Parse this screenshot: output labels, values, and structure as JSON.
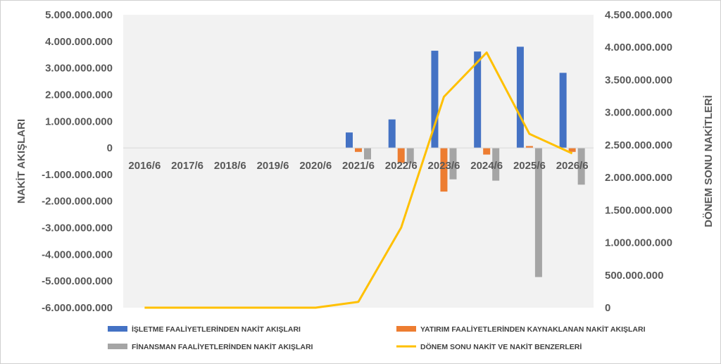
{
  "chart_data": {
    "type": "bar",
    "categories": [
      "2016/6",
      "2017/6",
      "2018/6",
      "2019/6",
      "2020/6",
      "2021/6",
      "2022/6",
      "2023/6",
      "2024/6",
      "2025/6",
      "2026/6"
    ],
    "series": [
      {
        "name": "İŞLETME FAALİYETLERİNDEN NAKİT AKIŞLARI",
        "axis": "left",
        "chart_type": "bar",
        "color": "#4472c4",
        "values": [
          0,
          0,
          0,
          0,
          0,
          580000000,
          1070000000,
          3650000000,
          3620000000,
          3800000000,
          2820000000
        ]
      },
      {
        "name": "YATIRIM FAALİYETLERİNDEN KAYNAKLANAN NAKİT AKIŞLARI",
        "axis": "left",
        "chart_type": "bar",
        "color": "#ed7d31",
        "values": [
          0,
          0,
          0,
          0,
          0,
          -150000000,
          -560000000,
          -1640000000,
          -250000000,
          70000000,
          -150000000
        ]
      },
      {
        "name": "FİNANSMAN FAALİYETLERİNDEN NAKİT AKIŞLARI",
        "axis": "left",
        "chart_type": "bar",
        "color": "#a5a5a5",
        "values": [
          0,
          0,
          0,
          0,
          0,
          -430000000,
          -580000000,
          -1180000000,
          -1230000000,
          -4850000000,
          -1380000000
        ]
      },
      {
        "name": "DÖNEM SONU NAKİT VE NAKİT BENZERLERİ",
        "axis": "right",
        "chart_type": "line",
        "color": "#ffc000",
        "values": [
          0,
          0,
          0,
          0,
          0,
          90000000,
          1230000000,
          3240000000,
          3920000000,
          2670000000,
          2370000000
        ]
      }
    ],
    "ylabel": "NAKİT AKIŞLARI",
    "y2label": "DÖNEM SONU NAKİTLERİ",
    "ylim": [
      -6000000000,
      5000000000
    ],
    "y2lim": [
      0,
      4500000000
    ],
    "yticks": [
      "5.000.000.000",
      "4.000.000.000",
      "3.000.000.000",
      "2.000.000.000",
      "1.000.000.000",
      "0",
      "-1.000.000.000",
      "-2.000.000.000",
      "-3.000.000.000",
      "-4.000.000.000",
      "-5.000.000.000",
      "-6.000.000.000"
    ],
    "y2ticks": [
      "4.500.000.000",
      "4.000.000.000",
      "3.500.000.000",
      "3.000.000.000",
      "2.500.000.000",
      "2.000.000.000",
      "1.500.000.000",
      "1.000.000.000",
      "500.000.000",
      "0"
    ],
    "plot_background": "#f2f2f2",
    "grid": false,
    "legend_position": "bottom"
  }
}
